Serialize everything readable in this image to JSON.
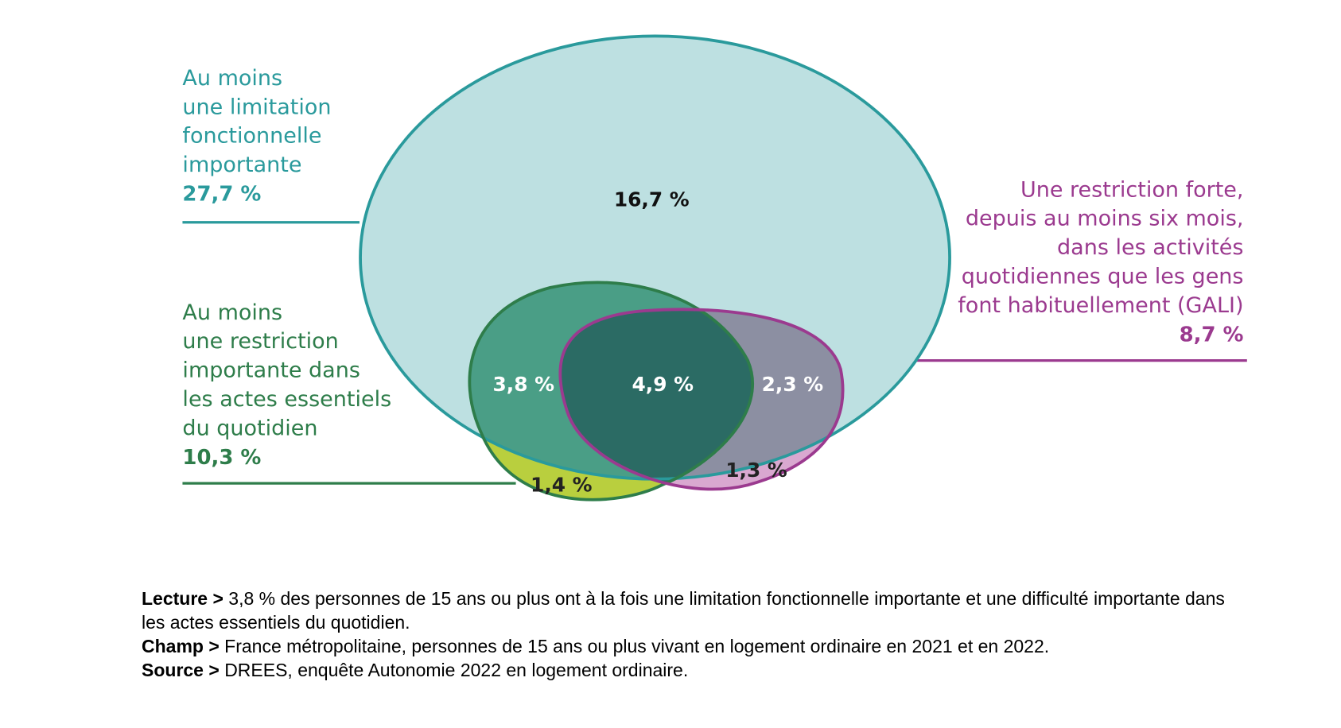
{
  "chart_data": {
    "type": "venn",
    "sets": {
      "names": [
        [
          "Au moins",
          "une limitation",
          "fonctionnelle",
          "importante"
        ],
        [
          "Au moins",
          "une restriction",
          "importante dans",
          "les actes essentiels",
          "du quotidien"
        ],
        [
          "Une restriction forte,",
          "depuis au moins six mois,",
          "dans les activités",
          "quotidiennes que les gens",
          "font habituellement (GALI)"
        ]
      ],
      "values": [
        27.7,
        10.3,
        8.7
      ],
      "value_labels": [
        "27,7 %",
        "10,3 %",
        "8,7 %"
      ],
      "colors": [
        "#2a9a9c",
        "#2e7d4a",
        "#9b3a8f"
      ]
    },
    "regions": {
      "values": [
        16.7,
        3.8,
        4.9,
        2.3,
        1.4,
        1.3
      ],
      "value_labels": [
        "16,7 %",
        "3,8 %",
        "4,9 %",
        "2,3 %",
        "1,4 %",
        "1,3 %"
      ],
      "colors": [
        "#bde0e1",
        "#4a9e86",
        "#2b6b64",
        "#8c8fa2",
        "#b9cf3e",
        "#d9a8d0"
      ]
    },
    "notes": [
      {
        "label": "Lecture >",
        "text": "3,8 % des personnes de 15 ans ou plus ont à la fois une limitation fonctionnelle importante et une difficulté importante dans les actes essentiels du quotidien."
      },
      {
        "label": "Champ >",
        "text": "France métropolitaine, personnes de 15 ans ou plus vivant en logement ordinaire en 2021 et en 2022."
      },
      {
        "label": "Source >",
        "text": "DREES, enquête Autonomie 2022 en logement ordinaire."
      }
    ]
  }
}
